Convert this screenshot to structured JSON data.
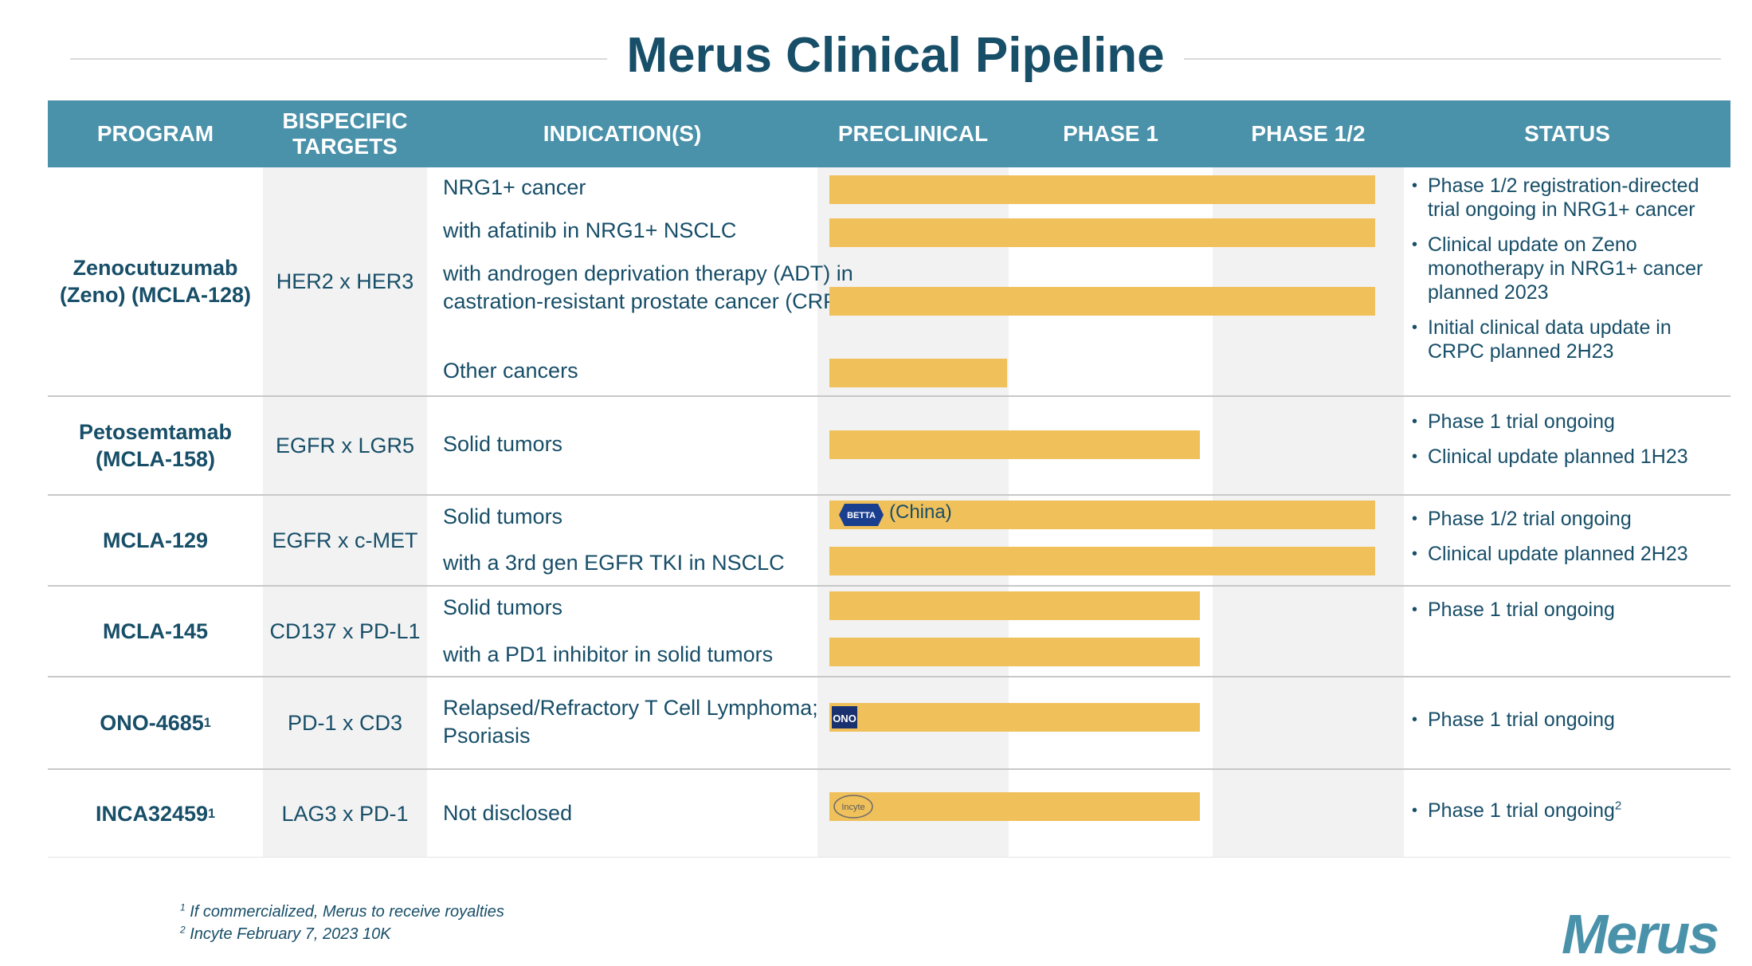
{
  "title": "Merus Clinical Pipeline",
  "header": {
    "program": "PROGRAM",
    "targets": "BISPECIFIC TARGETS",
    "indications": "INDICATION(S)",
    "preclinical": "PRECLINICAL",
    "phase1": "PHASE 1",
    "phase12": "PHASE 1/2",
    "status": "STATUS"
  },
  "rows": [
    {
      "program": "Zenocutuzumab (Zeno) (MCLA-128)",
      "targets": "HER2 x HER3",
      "indications": [
        "NRG1+ cancer",
        "with afatinib in NRG1+ NSCLC",
        "with androgen deprivation therapy (ADT) in castration-resistant prostate cancer (CRPC)",
        "Other cancers"
      ],
      "stage_reached": [
        "Phase 1/2",
        "Phase 1/2",
        "Phase 1/2",
        "Preclinical"
      ],
      "status": [
        "Phase 1/2 registration-directed trial ongoing in NRG1+ cancer",
        "Clinical update on Zeno monotherapy in NRG1+ cancer planned 2023",
        "Initial clinical data update in CRPC planned 2H23"
      ]
    },
    {
      "program": "Petosemtamab (MCLA-158)",
      "targets": "EGFR x LGR5",
      "indications": [
        "Solid tumors"
      ],
      "stage_reached": [
        "Phase 1"
      ],
      "status": [
        "Phase 1 trial ongoing",
        "Clinical update planned 1H23"
      ]
    },
    {
      "program": "MCLA-129",
      "targets": "EGFR x c-MET",
      "indications": [
        "Solid tumors",
        "with a 3rd gen EGFR TKI in NSCLC"
      ],
      "stage_reached": [
        "Phase 1/2",
        "Phase 1/2"
      ],
      "partner_logo": "BETTA",
      "partner_note": "(China)",
      "status": [
        "Phase 1/2 trial ongoing",
        "Clinical update planned 2H23"
      ]
    },
    {
      "program": "MCLA-145",
      "targets": "CD137 x PD-L1",
      "indications": [
        "Solid tumors",
        "with a PD1 inhibitor in solid tumors"
      ],
      "stage_reached": [
        "Phase 1",
        "Phase 1"
      ],
      "status": [
        "Phase 1 trial ongoing"
      ]
    },
    {
      "program": "ONO-4685",
      "program_sup": "1",
      "targets": "PD-1 x CD3",
      "indications": [
        "Relapsed/Refractory T Cell Lymphoma; Psoriasis"
      ],
      "stage_reached": [
        "Phase 1"
      ],
      "partner_logo": "ONO",
      "status": [
        "Phase 1 trial ongoing"
      ]
    },
    {
      "program": "INCA32459",
      "program_sup": "1",
      "targets": "LAG3 x PD-1",
      "indications": [
        "Not disclosed"
      ],
      "stage_reached": [
        "Phase 1"
      ],
      "partner_logo": "Incyte",
      "status": [
        "Phase 1 trial ongoing"
      ],
      "status_sup": "2"
    }
  ],
  "footnotes": {
    "one": "If commercialized, Merus to receive royalties",
    "two": "Incyte February 7, 2023 10K"
  },
  "logo": "Merus",
  "colors": {
    "header": "#4a91aa",
    "bar": "#f0c05a",
    "text": "#174e68",
    "shade": "#f2f2f2"
  }
}
